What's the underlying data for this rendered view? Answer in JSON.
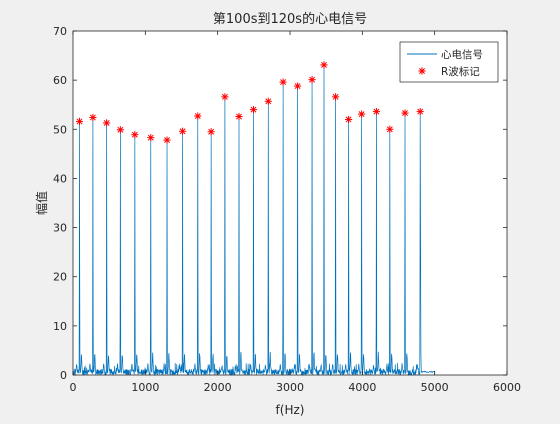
{
  "chart_data": {
    "type": "line",
    "title": "第100s到120s的心电信号",
    "xlabel": "f(Hz)",
    "ylabel": "幅值",
    "xlim": [
      0,
      6000
    ],
    "ylim": [
      0,
      70
    ],
    "xticks": [
      0,
      1000,
      2000,
      3000,
      4000,
      5000,
      6000
    ],
    "yticks": [
      0,
      10,
      20,
      30,
      40,
      50,
      60,
      70
    ],
    "grid": false,
    "legend_position": "top-right",
    "series": [
      {
        "name": "心电信号",
        "style": "line",
        "color": "#0072bd",
        "x_start": 0,
        "x_end": 5000,
        "baseline_noise_max": 2.5,
        "trailing_segment": {
          "x_start": 4800,
          "x_end": 5000,
          "level": 0.5
        }
      },
      {
        "name": "R波标记",
        "style": "marker",
        "marker": "*",
        "color": "#ff0000",
        "points": [
          {
            "x": 90,
            "y": 51.6
          },
          {
            "x": 275,
            "y": 52.4
          },
          {
            "x": 465,
            "y": 51.3
          },
          {
            "x": 655,
            "y": 49.9
          },
          {
            "x": 855,
            "y": 48.9
          },
          {
            "x": 1075,
            "y": 48.3
          },
          {
            "x": 1300,
            "y": 47.8
          },
          {
            "x": 1515,
            "y": 49.6
          },
          {
            "x": 1725,
            "y": 52.7
          },
          {
            "x": 1910,
            "y": 49.5
          },
          {
            "x": 2100,
            "y": 56.6
          },
          {
            "x": 2295,
            "y": 52.6
          },
          {
            "x": 2495,
            "y": 54.0
          },
          {
            "x": 2700,
            "y": 55.7
          },
          {
            "x": 2905,
            "y": 59.6
          },
          {
            "x": 3105,
            "y": 58.8
          },
          {
            "x": 3305,
            "y": 60.1
          },
          {
            "x": 3470,
            "y": 63.1
          },
          {
            "x": 3630,
            "y": 56.6
          },
          {
            "x": 3810,
            "y": 52.0
          },
          {
            "x": 3990,
            "y": 53.1
          },
          {
            "x": 4195,
            "y": 53.6
          },
          {
            "x": 4380,
            "y": 50.0
          },
          {
            "x": 4590,
            "y": 53.3
          },
          {
            "x": 4800,
            "y": 53.6
          }
        ]
      }
    ]
  }
}
